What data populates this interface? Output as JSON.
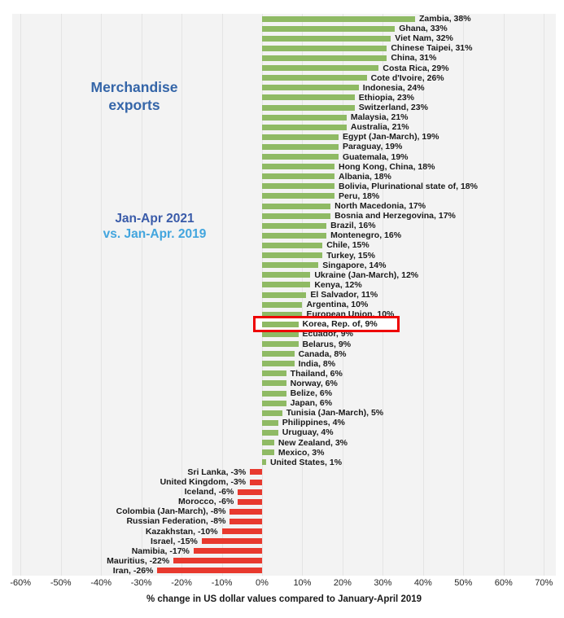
{
  "panel": {
    "series_label": {
      "line1": "Merchandise",
      "line2": "exports"
    },
    "period_label": {
      "line1": "Jan-Apr 2021",
      "line2": "vs. Jan-Apr. 2019"
    }
  },
  "chart_data": {
    "type": "bar",
    "orientation": "horizontal",
    "title": "Merchandise exports",
    "subtitle": "Jan-Apr 2021 vs. Jan-Apr. 2019",
    "xlabel": "% change in US dollar values compared to January-April 2019",
    "value_suffix": "%",
    "grid": true,
    "legend_position": "none",
    "x_ticks": [
      -60,
      -50,
      -40,
      -30,
      -20,
      -10,
      0,
      10,
      20,
      30,
      40,
      50,
      60,
      70
    ],
    "xlim": [
      -62,
      73
    ],
    "highlight_category": "Korea, Rep. of",
    "colors": {
      "positive_bar": "#8fba64",
      "negative_bar": "#e8392e",
      "highlight_box": "#ee0000",
      "title_text": "#3465a8",
      "period_line1_text": "#3a5ba9",
      "period_line2_text": "#42a5de",
      "plot_background": "#f3f3f3"
    },
    "categories": [
      "Zambia",
      "Ghana",
      "Viet Nam",
      "Chinese Taipei",
      "China",
      "Costa Rica",
      "Cote d'Ivoire",
      "Indonesia",
      "Ethiopia",
      "Switzerland",
      "Malaysia",
      "Australia",
      "Egypt (Jan-March)",
      "Paraguay",
      "Guatemala",
      "Hong Kong, China",
      "Albania",
      "Bolivia, Plurinational state of",
      "Peru",
      "North Macedonia",
      "Bosnia and Herzegovina",
      "Brazil",
      "Montenegro",
      "Chile",
      "Turkey",
      "Singapore",
      "Ukraine (Jan-March)",
      "Kenya",
      "El Salvador",
      "Argentina",
      "European Union",
      "Korea, Rep. of",
      "Ecuador",
      "Belarus",
      "Canada",
      "India",
      "Thailand",
      "Norway",
      "Belize",
      "Japan",
      "Tunisia (Jan-March)",
      "Philippines",
      "Uruguay",
      "New Zealand",
      "Mexico",
      "United States",
      "Sri Lanka",
      "United Kingdom",
      "Iceland",
      "Morocco",
      "Colombia (Jan-March)",
      "Russian Federation",
      "Kazakhstan",
      "Israel",
      "Namibia",
      "Mauritius",
      "Iran"
    ],
    "values": [
      38,
      33,
      32,
      31,
      31,
      29,
      26,
      24,
      23,
      23,
      21,
      21,
      19,
      19,
      19,
      18,
      18,
      18,
      18,
      17,
      17,
      16,
      16,
      15,
      15,
      14,
      12,
      12,
      11,
      10,
      10,
      9,
      9,
      9,
      8,
      8,
      6,
      6,
      6,
      6,
      5,
      4,
      4,
      3,
      3,
      1,
      -3,
      -3,
      -6,
      -6,
      -8,
      -8,
      -10,
      -15,
      -17,
      -22,
      -26
    ]
  }
}
